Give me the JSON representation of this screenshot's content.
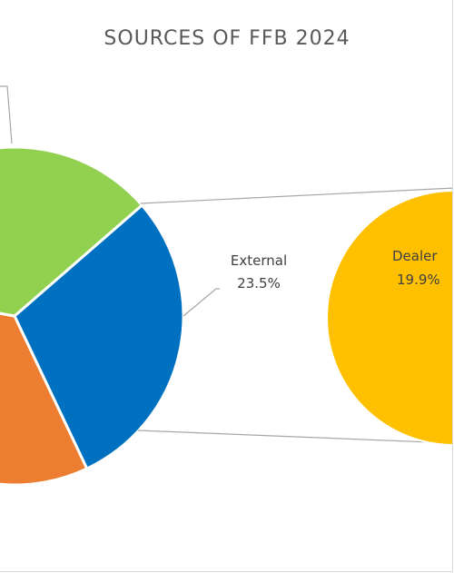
{
  "chart_data": {
    "type": "pie",
    "title": "SOURCES OF FFB 2024",
    "variant": "bar-of-pie",
    "slices": [
      {
        "label": "External",
        "value_text": "23.5%",
        "value": 23.5,
        "color": "#0070c0"
      },
      {
        "label": "",
        "value_text": "",
        "value": 28.0,
        "color": "#ed7d31"
      },
      {
        "label": "",
        "value_text": "",
        "value": 28.6,
        "color": "#92d050"
      },
      {
        "label": "Dealer",
        "value_text": "19.9%",
        "value": 19.9,
        "color": "#ffc000"
      }
    ]
  }
}
